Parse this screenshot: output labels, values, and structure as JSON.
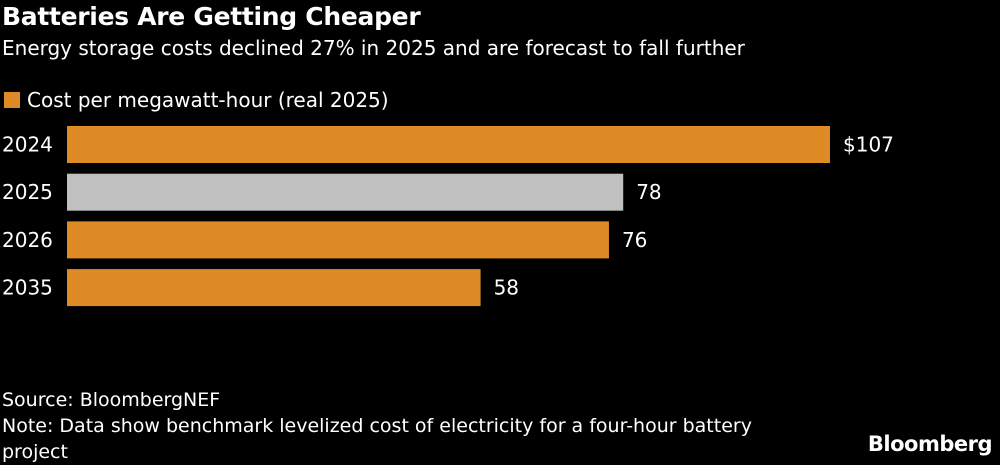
{
  "title": "Batteries Are Getting Cheaper",
  "subtitle": "Energy storage costs declined 27% in 2025 and are forecast to fall further",
  "source": "Source: BloombergNEF",
  "note": "Note: Data show benchmark levelized cost of electricity for a four-hour battery project",
  "logo": "Bloomberg",
  "colors": {
    "orange": "#DE8B26",
    "gray": "#C0C0C0",
    "background": "#000000"
  },
  "chart_data": {
    "type": "bar",
    "orientation": "horizontal",
    "categories": [
      "2024",
      "2025",
      "2026",
      "2035"
    ],
    "series": [
      {
        "name": "Cost per megawatt-hour (real 2025)",
        "values": [
          107,
          78,
          76,
          58
        ]
      }
    ],
    "data_labels": [
      "$107",
      "78",
      "76",
      "58"
    ],
    "highlight": {
      "2025": "#C0C0C0"
    },
    "legend": "top-left",
    "grid": false
  }
}
